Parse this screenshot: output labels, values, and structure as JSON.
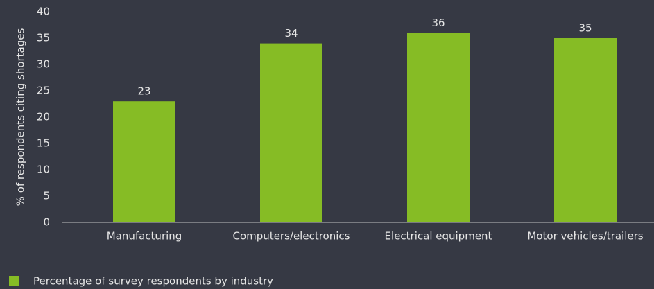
{
  "chart_data": {
    "type": "bar",
    "y_axis_label": "% of respondents citing shortages",
    "categories": [
      "Manufacturing",
      "Computers/electronics",
      "Electrical equipment",
      "Motor vehicles/trailers"
    ],
    "series": [
      {
        "name": "Percentage of survey respondents by industry",
        "color": "#86bc25",
        "values": [
          23,
          34,
          36,
          35
        ]
      }
    ],
    "ylim": [
      0,
      40
    ],
    "yticks": [
      0,
      5,
      10,
      15,
      20,
      25,
      30,
      35,
      40
    ],
    "grid": false,
    "legend": "bottom-left"
  }
}
